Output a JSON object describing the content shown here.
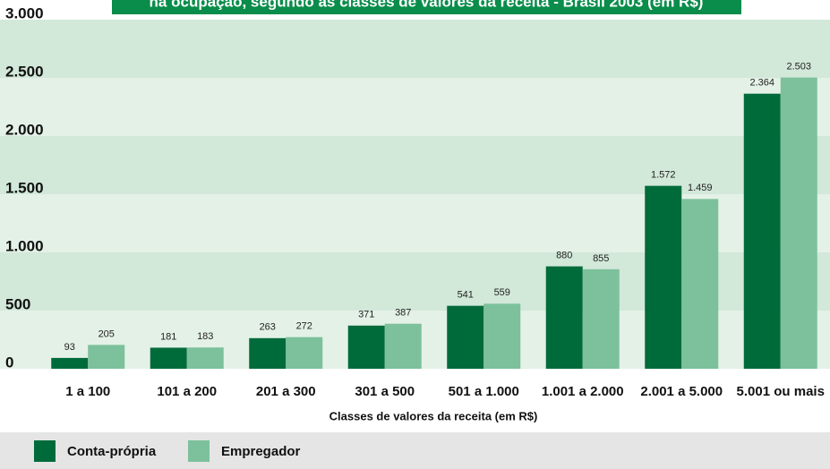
{
  "chart_data": {
    "type": "bar",
    "title": "na ocupação, segundo as classes de valores da receita - Brasil 2003 (em R$)",
    "x_label": "Classes de valores da receita (em R$)",
    "categories": [
      "1 a 100",
      "101 a 200",
      "201 a 300",
      "301 a 500",
      "501 a 1.000",
      "1.001 a 2.000",
      "2.001 a 5.000",
      "5.001 ou mais"
    ],
    "series": [
      {
        "name": "Conta-própria",
        "color": "#006b3a",
        "values": [
          93,
          181,
          263,
          371,
          541,
          880,
          1572,
          2364
        ],
        "value_labels": [
          "93",
          "181",
          "263",
          "371",
          "541",
          "880",
          "1.572",
          "2.364"
        ]
      },
      {
        "name": "Empregador",
        "color": "#7cc19b",
        "values": [
          205,
          183,
          272,
          387,
          559,
          855,
          1459,
          2503
        ],
        "value_labels": [
          "205",
          "183",
          "272",
          "387",
          "559",
          "855",
          "1.459",
          "2.503"
        ]
      }
    ],
    "ylim": [
      0,
      3000
    ],
    "yticks": [
      0,
      500,
      {
        "value": 1000,
        "label": "1.000"
      },
      {
        "value": 1500,
        "label": "1.500"
      },
      {
        "value": 2000,
        "label": "2.000"
      },
      {
        "value": 2500,
        "label": "2.500"
      },
      {
        "value": 3000,
        "label": "3.000"
      }
    ],
    "grid": true
  }
}
